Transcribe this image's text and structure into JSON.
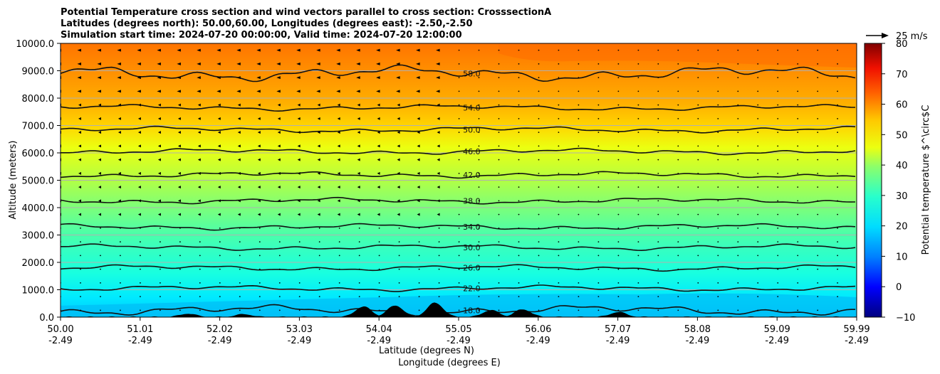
{
  "chart_data": {
    "type": "heatmap",
    "title_lines": [
      "Potential Temperature cross section and wind vectors parallel to cross section: CrosssectionA",
      "Latitudes (degrees north): 50.00,60.00, Longitudes (degrees east): -2.50,-2.50",
      "Simulation start time: 2024-07-20 00:00:00, Valid time: 2024-07-20 12:00:00"
    ],
    "ylabel": "Altitude (meters)",
    "xlabel": "Latitude (degrees N)",
    "xlabel2": "Longitude (degrees E)",
    "ylim": [
      0,
      10000
    ],
    "y_ticks": [
      "0.0",
      "1000.0",
      "2000.0",
      "3000.0",
      "4000.0",
      "5000.0",
      "6000.0",
      "7000.0",
      "8000.0",
      "9000.0",
      "10000.0"
    ],
    "x_lat_ticks": [
      "50.00",
      "51.01",
      "52.02",
      "53.03",
      "54.04",
      "55.05",
      "56.06",
      "57.07",
      "58.08",
      "59.09",
      "59.99"
    ],
    "x_lon_ticks": [
      "-2.49",
      "-2.49",
      "-2.49",
      "-2.49",
      "-2.49",
      "-2.49",
      "-2.49",
      "-2.49",
      "-2.49",
      "-2.49",
      "-2.49"
    ],
    "grid": "horizontal",
    "colorbar": {
      "label": "Potential temperature $^\\circ$C",
      "range": [
        -10,
        80
      ],
      "ticks": [
        "80",
        "70",
        "60",
        "50",
        "40",
        "30",
        "20",
        "10",
        "0",
        "−10"
      ]
    },
    "wind_reference": "25 m/s",
    "contours": [
      {
        "label": "18.0",
        "altitude_m": 250
      },
      {
        "label": "22.0",
        "altitude_m": 1050
      },
      {
        "label": "26.0",
        "altitude_m": 1800
      },
      {
        "label": "30.0",
        "altitude_m": 2550
      },
      {
        "label": "34.0",
        "altitude_m": 3300
      },
      {
        "label": "38.0",
        "altitude_m": 4250
      },
      {
        "label": "42.0",
        "altitude_m": 5200
      },
      {
        "label": "46.0",
        "altitude_m": 6050
      },
      {
        "label": "50.0",
        "altitude_m": 6850
      },
      {
        "label": "54.0",
        "altitude_m": 7650
      },
      {
        "label": "58.0",
        "altitude_m": 8900
      }
    ],
    "terrain_peaks": [
      {
        "lat": 51.6,
        "height_m": 120
      },
      {
        "lat": 52.3,
        "height_m": 100
      },
      {
        "lat": 53.8,
        "height_m": 380
      },
      {
        "lat": 54.2,
        "height_m": 420
      },
      {
        "lat": 54.7,
        "height_m": 520
      },
      {
        "lat": 55.4,
        "height_m": 250
      },
      {
        "lat": 55.8,
        "height_m": 280
      },
      {
        "lat": 57.0,
        "height_m": 180
      }
    ]
  }
}
